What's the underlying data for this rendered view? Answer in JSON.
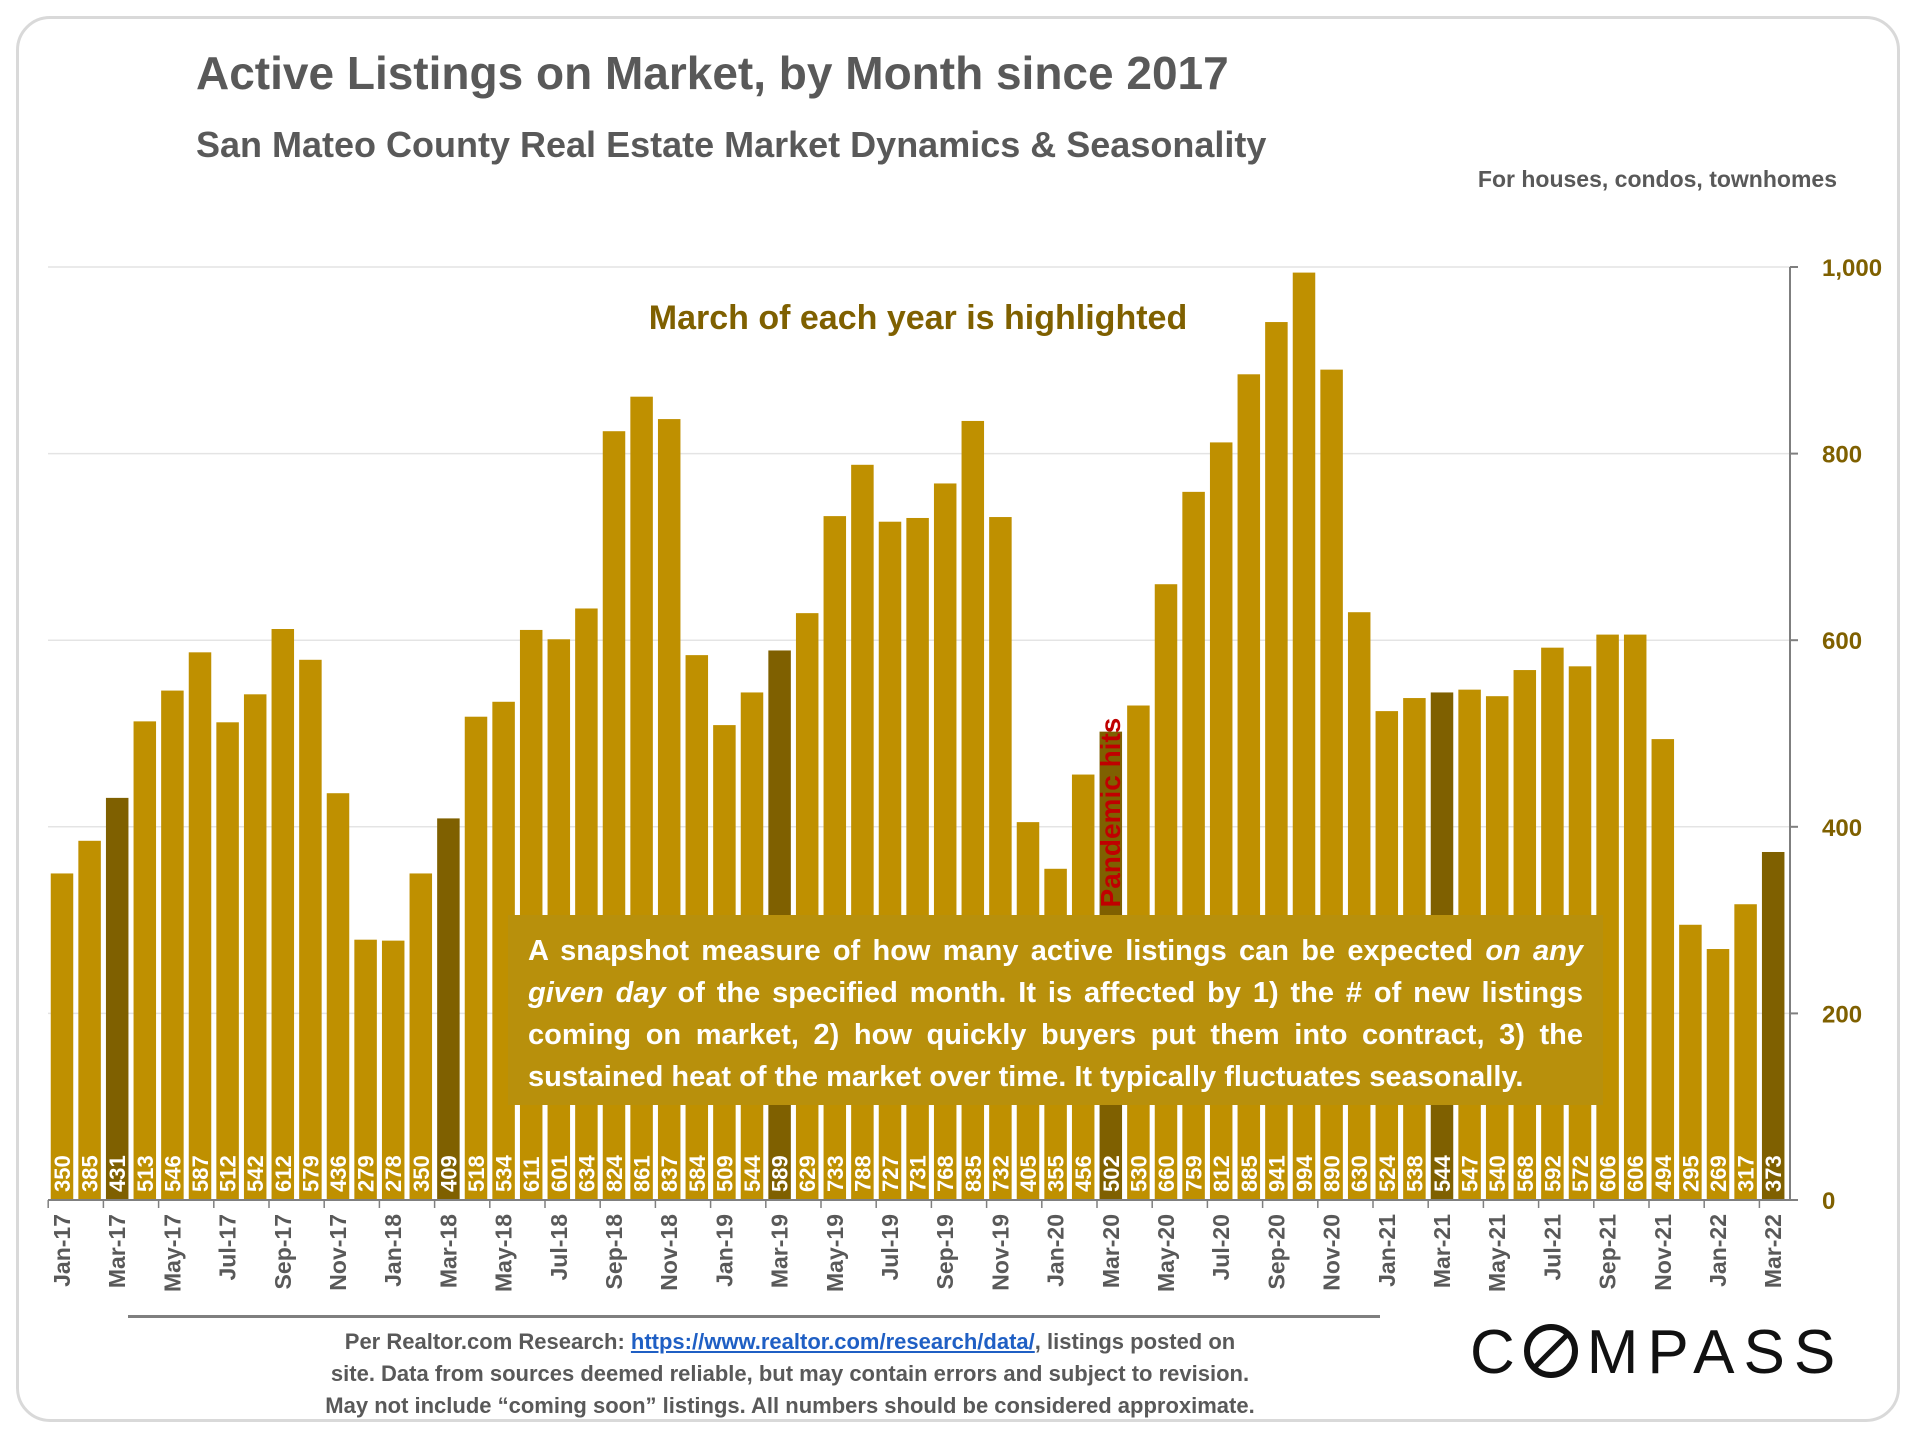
{
  "chart_data": {
    "type": "bar",
    "title": "Active Listings on Market, by Month since 2017",
    "subtitle": "San Mateo County Real Estate Market Dynamics & Seasonality",
    "scope_note": "For houses, condos, townhomes",
    "highlight_note": "March of each year is highlighted",
    "event_annotation": {
      "category": "Mar-20",
      "label": "Pandemic hits"
    },
    "ylim": [
      0,
      1000
    ],
    "yticks": [
      0,
      200,
      400,
      600,
      800,
      1000
    ],
    "ytick_labels": [
      "0",
      "200",
      "400",
      "600",
      "800",
      "1,000"
    ],
    "categories": [
      "Jan-17",
      "Feb-17",
      "Mar-17",
      "Apr-17",
      "May-17",
      "Jun-17",
      "Jul-17",
      "Aug-17",
      "Sep-17",
      "Oct-17",
      "Nov-17",
      "Dec-17",
      "Jan-18",
      "Feb-18",
      "Mar-18",
      "Apr-18",
      "May-18",
      "Jun-18",
      "Jul-18",
      "Aug-18",
      "Sep-18",
      "Oct-18",
      "Nov-18",
      "Dec-18",
      "Jan-19",
      "Feb-19",
      "Mar-19",
      "Apr-19",
      "May-19",
      "Jun-19",
      "Jul-19",
      "Aug-19",
      "Sep-19",
      "Oct-19",
      "Nov-19",
      "Dec-19",
      "Jan-20",
      "Feb-20",
      "Mar-20",
      "Apr-20",
      "May-20",
      "Jun-20",
      "Jul-20",
      "Aug-20",
      "Sep-20",
      "Oct-20",
      "Nov-20",
      "Dec-20",
      "Jan-21",
      "Feb-21",
      "Mar-21",
      "Apr-21",
      "May-21",
      "Jun-21",
      "Jul-21",
      "Aug-21",
      "Sep-21",
      "Oct-21",
      "Nov-21",
      "Dec-21",
      "Jan-22",
      "Feb-22",
      "Mar-22"
    ],
    "values": [
      350,
      385,
      431,
      513,
      546,
      587,
      512,
      542,
      612,
      579,
      436,
      279,
      278,
      350,
      409,
      518,
      534,
      611,
      601,
      634,
      824,
      861,
      837,
      584,
      509,
      544,
      589,
      629,
      733,
      788,
      727,
      731,
      768,
      835,
      732,
      405,
      355,
      456,
      502,
      530,
      660,
      759,
      812,
      885,
      941,
      994,
      890,
      630,
      524,
      538,
      544,
      547,
      540,
      568,
      592,
      572,
      606,
      606,
      494,
      295,
      269,
      317,
      373
    ],
    "x_tick_labels": [
      "Jan-17",
      "Mar-17",
      "May-17",
      "Jul-17",
      "Sep-17",
      "Nov-17",
      "Jan-18",
      "Mar-18",
      "May-18",
      "Jul-18",
      "Sep-18",
      "Nov-18",
      "Jan-19",
      "Mar-19",
      "May-19",
      "Jul-19",
      "Sep-19",
      "Nov-19",
      "Jan-20",
      "Mar-20",
      "May-20",
      "Jul-20",
      "Sep-20",
      "Nov-20",
      "Jan-21",
      "Mar-21",
      "May-21",
      "Jul-21",
      "Sep-21",
      "Nov-21",
      "Jan-22",
      "Mar-22"
    ],
    "highlighted_categories": [
      "Mar-17",
      "Mar-18",
      "Mar-19",
      "Mar-20",
      "Mar-21",
      "Mar-22"
    ]
  },
  "colors": {
    "bar": "#bf9000",
    "bar_highlight": "#7f6000",
    "axis_text": "#7f6000",
    "annotation_red": "#c00000",
    "title_text": "#595959"
  },
  "info_box": {
    "line1_start": "A snapshot measure of how many active listings can be expected ",
    "line1_em": "on any",
    "line2_em": "given day",
    "line2_rest": " of the specified month. It is affected by 1) the # of new listings",
    "line3": "coming on market, 2) how quickly buyers put them into contract, 3) the",
    "line4": "sustained heat of the market over time. It typically fluctuates seasonally."
  },
  "source": {
    "prefix": "Per Realtor.com Research: ",
    "link": "https://www.realtor.com/research/data/",
    "after_link": ", listings posted on",
    "line2": "site. Data from sources deemed reliable, but may contain errors and subject to revision.",
    "line3": "May not include “coming soon” listings. All numbers should be considered approximate."
  },
  "logo": {
    "before_o": "C",
    "after_o": "MPASS"
  }
}
